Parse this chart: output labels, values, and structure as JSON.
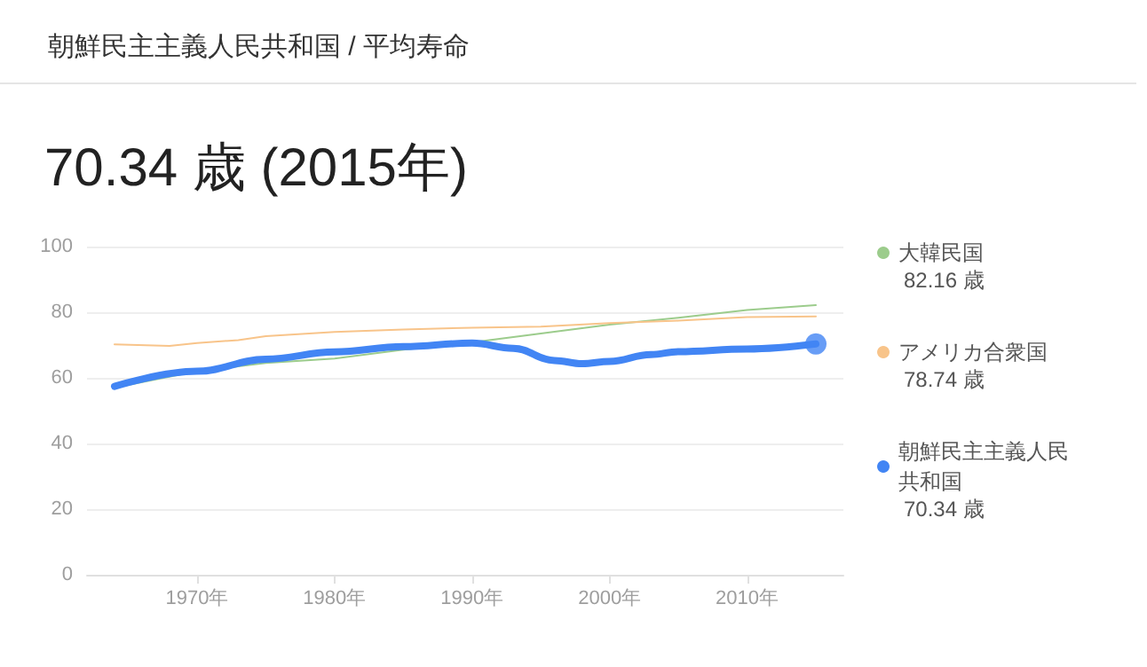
{
  "chart_data": {
    "type": "line",
    "title": "70.34 歳 (2015年)",
    "subtitle": "朝鮮民主主義人民共和国 / 平均寿命",
    "xlim": [
      1962,
      2017
    ],
    "xticks": [
      {
        "value": 1970,
        "label": "1970年"
      },
      {
        "value": 1980,
        "label": "1980年"
      },
      {
        "value": 1990,
        "label": "1990年"
      },
      {
        "value": 2000,
        "label": "2000年"
      },
      {
        "value": 2010,
        "label": "2010年"
      }
    ],
    "ylim": [
      0,
      100
    ],
    "yticks": [
      0,
      20,
      40,
      60,
      80,
      100
    ],
    "grid": "y",
    "legend": "right",
    "marker": "none",
    "line_style": "solid",
    "annotations": [
      "82.16 歳",
      "78.74 歳",
      "70.34 歳"
    ],
    "series": [
      {
        "name": "大韓民国",
        "color": "#9ccc8c",
        "x": [
          1964,
          1970,
          1975,
          1980,
          1985,
          1990,
          1995,
          2000,
          2005,
          2010,
          2015
        ],
        "values": [
          57,
          62,
          64.5,
          65.9,
          68.6,
          70.8,
          73.5,
          76.2,
          78.3,
          80.7,
          82.16
        ]
      },
      {
        "name": "アメリカ合衆国",
        "color": "#f8c48a",
        "x": [
          1964,
          1968,
          1970,
          1973,
          1975,
          1980,
          1985,
          1990,
          1995,
          2000,
          2005,
          2010,
          2015
        ],
        "values": [
          70.2,
          69.7,
          70.6,
          71.5,
          72.7,
          74,
          74.7,
          75.3,
          75.6,
          76.7,
          77.4,
          78.5,
          78.74
        ]
      },
      {
        "name": "朝鮮民主主義人民共和国",
        "color": "#4285f4",
        "x": [
          1964,
          1970,
          1975,
          1980,
          1985,
          1990,
          1993,
          1996,
          1998,
          2000,
          2003,
          2005,
          2010,
          2015
        ],
        "values": [
          57.4,
          62,
          65.7,
          67.9,
          69.5,
          70.6,
          69,
          65.3,
          64.3,
          65,
          67.1,
          68,
          68.8,
          70.34
        ]
      },
      {
        "type": "scatter",
        "color": "#4285f4",
        "marker": "circle",
        "x": [
          2015
        ],
        "values": [
          70.34
        ]
      }
    ]
  }
}
